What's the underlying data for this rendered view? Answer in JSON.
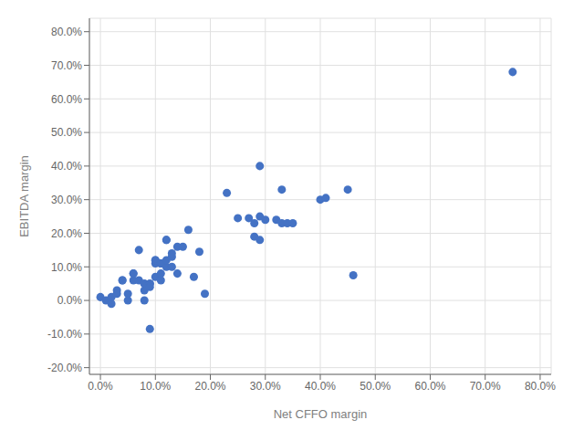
{
  "chart_data": {
    "type": "scatter",
    "xlabel": "Net CFFO margin",
    "ylabel": "EBITDA margin",
    "x": [
      0.0,
      0.01,
      0.02,
      0.02,
      0.03,
      0.03,
      0.04,
      0.04,
      0.05,
      0.05,
      0.06,
      0.06,
      0.06,
      0.07,
      0.07,
      0.08,
      0.08,
      0.08,
      0.08,
      0.09,
      0.09,
      0.09,
      0.09,
      0.1,
      0.1,
      0.1,
      0.1,
      0.11,
      0.11,
      0.11,
      0.11,
      0.12,
      0.12,
      0.12,
      0.12,
      0.13,
      0.13,
      0.13,
      0.14,
      0.14,
      0.15,
      0.16,
      0.17,
      0.18,
      0.19,
      0.23,
      0.25,
      0.27,
      0.28,
      0.28,
      0.29,
      0.29,
      0.29,
      0.3,
      0.32,
      0.33,
      0.33,
      0.34,
      0.35,
      0.4,
      0.41,
      0.45,
      0.46,
      0.75
    ],
    "values": [
      0.01,
      0.0,
      -0.01,
      0.01,
      0.03,
      0.02,
      0.06,
      0.06,
      0.0,
      0.02,
      0.06,
      0.08,
      0.08,
      0.15,
      0.06,
      0.0,
      0.03,
      0.05,
      0.05,
      0.05,
      0.05,
      0.04,
      -0.085,
      0.11,
      0.12,
      0.12,
      0.07,
      0.11,
      0.11,
      0.06,
      0.08,
      0.1,
      0.12,
      0.18,
      0.18,
      0.1,
      0.13,
      0.14,
      0.08,
      0.16,
      0.16,
      0.21,
      0.07,
      0.145,
      0.02,
      0.32,
      0.245,
      0.245,
      0.19,
      0.23,
      0.4,
      0.25,
      0.18,
      0.24,
      0.24,
      0.23,
      0.33,
      0.23,
      0.23,
      0.3,
      0.305,
      0.33,
      0.075,
      0.68
    ],
    "color": "#4472c4",
    "xlim": [
      -0.02,
      0.82
    ],
    "ylim": [
      -0.22,
      0.84
    ],
    "xticks": [
      {
        "value": 0.0,
        "label": "0.0%"
      },
      {
        "value": 0.1,
        "label": "10.0%"
      },
      {
        "value": 0.2,
        "label": "20.0%"
      },
      {
        "value": 0.3,
        "label": "30.0%"
      },
      {
        "value": 0.4,
        "label": "40.0%"
      },
      {
        "value": 0.5,
        "label": "50.0%"
      },
      {
        "value": 0.6,
        "label": "60.0%"
      },
      {
        "value": 0.7,
        "label": "70.0%"
      },
      {
        "value": 0.8,
        "label": "80.0%"
      }
    ],
    "yticks": [
      {
        "value": -0.2,
        "label": "-20.0%"
      },
      {
        "value": -0.1,
        "label": "-10.0%"
      },
      {
        "value": 0.0,
        "label": "0.0%"
      },
      {
        "value": 0.1,
        "label": "10.0%"
      },
      {
        "value": 0.2,
        "label": "20.0%"
      },
      {
        "value": 0.3,
        "label": "30.0%"
      },
      {
        "value": 0.4,
        "label": "40.0%"
      },
      {
        "value": 0.5,
        "label": "50.0%"
      },
      {
        "value": 0.6,
        "label": "60.0%"
      },
      {
        "value": 0.7,
        "label": "70.0%"
      },
      {
        "value": 0.8,
        "label": "80.0%"
      }
    ],
    "grid": true
  }
}
